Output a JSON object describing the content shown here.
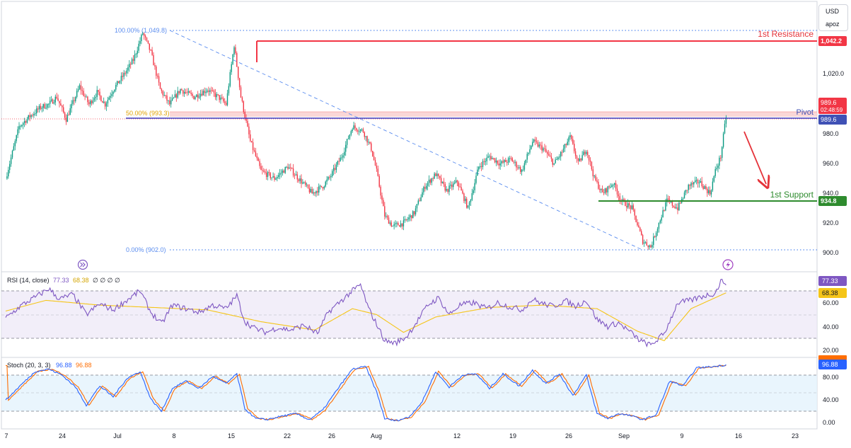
{
  "header": {
    "currency": "USD",
    "quote_mode": "apoz"
  },
  "colors": {
    "up": "#089981",
    "down": "#f23645",
    "resistance": "#f23645",
    "support": "#2e8b2e",
    "pivot": "#3f3fbf",
    "fib_line": "#5b8def",
    "rsi_line": "#7e57c2",
    "rsi_ma": "#f5c518",
    "stoch_k": "#2962ff",
    "stoch_d": "#ff6d00",
    "arrow": "#e5333a"
  },
  "icons": {
    "top_left": "double-chevron-right-icon",
    "top_right": "lightning-icon"
  },
  "main_chart": {
    "price_ticks": [
      "1,020.0",
      "980.0",
      "960.0",
      "940.0",
      "920.0",
      "900.0"
    ],
    "current_price": "989.6",
    "countdown": "02:48:59",
    "fib": {
      "f100": "100.00% (1,049.8)",
      "f50": "50.00% (993.3)",
      "f0": "0.00% (902.0)"
    },
    "levels": {
      "resistance": {
        "label": "1st Resistance",
        "value": "1,042.2",
        "price": 1042.2
      },
      "pivot": {
        "label": "Pivot",
        "value": "989.6",
        "price": 989.6
      },
      "support": {
        "label": "1st Support",
        "value": "934.8",
        "price": 934.8
      }
    }
  },
  "rsi": {
    "label": "RSI (14, close)",
    "value": "77.33",
    "ma_value": "68.38",
    "extra": "∅ ∅ ∅ ∅",
    "ticks": [
      "60.00",
      "40.00",
      "20.00"
    ],
    "bands": [
      70,
      50,
      30
    ]
  },
  "stoch": {
    "label": "Stoch (20, 3, 3)",
    "k_value": "96.88",
    "d_value": "96.88",
    "ticks": [
      "80.00",
      "40.00",
      "0.00"
    ],
    "bands": [
      80,
      50,
      20
    ]
  },
  "time_axis": [
    "7",
    "24",
    "Jul",
    "8",
    "15",
    "22",
    "26",
    "Aug",
    "12",
    "19",
    "26",
    "Sep",
    "9",
    "16",
    "23"
  ],
  "chart_data": {
    "type": "candlestick",
    "ylim": [
      893,
      1060
    ],
    "price_anchors": [
      [
        0,
        950
      ],
      [
        10,
        985
      ],
      [
        18,
        992
      ],
      [
        26,
        998
      ],
      [
        32,
        1000
      ],
      [
        38,
        1005
      ],
      [
        45,
        990
      ],
      [
        55,
        1012
      ],
      [
        62,
        1000
      ],
      [
        68,
        1008
      ],
      [
        74,
        1000
      ],
      [
        80,
        1010
      ],
      [
        88,
        1020
      ],
      [
        95,
        1030
      ],
      [
        102,
        1048
      ],
      [
        108,
        1035
      ],
      [
        115,
        1010
      ],
      [
        122,
        1000
      ],
      [
        130,
        1010
      ],
      [
        140,
        1005
      ],
      [
        150,
        1010
      ],
      [
        158,
        1005
      ],
      [
        164,
        1000
      ],
      [
        170,
        1040
      ],
      [
        175,
        1005
      ],
      [
        182,
        975
      ],
      [
        190,
        955
      ],
      [
        200,
        950
      ],
      [
        210,
        958
      ],
      [
        218,
        950
      ],
      [
        228,
        940
      ],
      [
        236,
        945
      ],
      [
        242,
        952
      ],
      [
        250,
        965
      ],
      [
        258,
        985
      ],
      [
        266,
        982
      ],
      [
        272,
        970
      ],
      [
        276,
        955
      ],
      [
        282,
        925
      ],
      [
        288,
        918
      ],
      [
        296,
        920
      ],
      [
        304,
        927
      ],
      [
        312,
        945
      ],
      [
        320,
        953
      ],
      [
        328,
        942
      ],
      [
        336,
        948
      ],
      [
        344,
        930
      ],
      [
        352,
        958
      ],
      [
        360,
        965
      ],
      [
        368,
        960
      ],
      [
        376,
        963
      ],
      [
        384,
        955
      ],
      [
        392,
        975
      ],
      [
        400,
        970
      ],
      [
        408,
        960
      ],
      [
        414,
        968
      ],
      [
        420,
        978
      ],
      [
        426,
        960
      ],
      [
        432,
        970
      ],
      [
        438,
        950
      ],
      [
        444,
        940
      ],
      [
        452,
        947
      ],
      [
        458,
        935
      ],
      [
        466,
        930
      ],
      [
        474,
        908
      ],
      [
        480,
        904
      ],
      [
        486,
        920
      ],
      [
        492,
        935
      ],
      [
        500,
        930
      ],
      [
        508,
        945
      ],
      [
        516,
        948
      ],
      [
        524,
        940
      ],
      [
        528,
        955
      ],
      [
        532,
        965
      ],
      [
        536,
        992
      ]
    ],
    "rsi_anchors": [
      [
        0,
        47
      ],
      [
        12,
        58
      ],
      [
        24,
        66
      ],
      [
        32,
        72
      ],
      [
        40,
        63
      ],
      [
        50,
        67
      ],
      [
        60,
        50
      ],
      [
        70,
        59
      ],
      [
        80,
        54
      ],
      [
        90,
        62
      ],
      [
        100,
        70
      ],
      [
        108,
        52
      ],
      [
        116,
        42
      ],
      [
        124,
        58
      ],
      [
        134,
        55
      ],
      [
        144,
        52
      ],
      [
        154,
        58
      ],
      [
        164,
        55
      ],
      [
        172,
        66
      ],
      [
        178,
        44
      ],
      [
        186,
        38
      ],
      [
        194,
        35
      ],
      [
        202,
        39
      ],
      [
        212,
        37
      ],
      [
        222,
        41
      ],
      [
        232,
        34
      ],
      [
        240,
        52
      ],
      [
        248,
        60
      ],
      [
        258,
        70
      ],
      [
        264,
        75
      ],
      [
        270,
        55
      ],
      [
        276,
        42
      ],
      [
        282,
        28
      ],
      [
        290,
        26
      ],
      [
        298,
        31
      ],
      [
        306,
        44
      ],
      [
        314,
        58
      ],
      [
        322,
        64
      ],
      [
        330,
        50
      ],
      [
        338,
        58
      ],
      [
        348,
        60
      ],
      [
        358,
        55
      ],
      [
        366,
        60
      ],
      [
        374,
        57
      ],
      [
        384,
        54
      ],
      [
        392,
        63
      ],
      [
        400,
        59
      ],
      [
        408,
        57
      ],
      [
        416,
        62
      ],
      [
        424,
        57
      ],
      [
        432,
        62
      ],
      [
        440,
        46
      ],
      [
        448,
        40
      ],
      [
        456,
        43
      ],
      [
        464,
        36
      ],
      [
        472,
        28
      ],
      [
        480,
        24
      ],
      [
        490,
        34
      ],
      [
        500,
        60
      ],
      [
        510,
        62
      ],
      [
        520,
        66
      ],
      [
        528,
        68
      ],
      [
        532,
        78
      ],
      [
        536,
        77.33
      ]
    ],
    "rsi_ma_anchors": [
      [
        0,
        53
      ],
      [
        30,
        62
      ],
      [
        70,
        58
      ],
      [
        110,
        56
      ],
      [
        150,
        54
      ],
      [
        190,
        44
      ],
      [
        230,
        37
      ],
      [
        258,
        55
      ],
      [
        276,
        50
      ],
      [
        296,
        35
      ],
      [
        320,
        48
      ],
      [
        360,
        56
      ],
      [
        400,
        58
      ],
      [
        440,
        55
      ],
      [
        470,
        36
      ],
      [
        490,
        28
      ],
      [
        510,
        55
      ],
      [
        536,
        68.38
      ]
    ],
    "stoch_anchors": [
      [
        0,
        38
      ],
      [
        12,
        65
      ],
      [
        22,
        86
      ],
      [
        32,
        90
      ],
      [
        42,
        80
      ],
      [
        52,
        60
      ],
      [
        60,
        30
      ],
      [
        70,
        62
      ],
      [
        80,
        44
      ],
      [
        90,
        74
      ],
      [
        100,
        86
      ],
      [
        108,
        40
      ],
      [
        116,
        20
      ],
      [
        124,
        58
      ],
      [
        134,
        70
      ],
      [
        144,
        58
      ],
      [
        154,
        78
      ],
      [
        164,
        66
      ],
      [
        172,
        82
      ],
      [
        178,
        24
      ],
      [
        186,
        8
      ],
      [
        194,
        6
      ],
      [
        206,
        12
      ],
      [
        216,
        16
      ],
      [
        226,
        6
      ],
      [
        236,
        22
      ],
      [
        248,
        60
      ],
      [
        258,
        90
      ],
      [
        268,
        94
      ],
      [
        276,
        52
      ],
      [
        282,
        8
      ],
      [
        290,
        4
      ],
      [
        300,
        10
      ],
      [
        310,
        36
      ],
      [
        320,
        86
      ],
      [
        330,
        60
      ],
      [
        340,
        80
      ],
      [
        350,
        82
      ],
      [
        360,
        58
      ],
      [
        370,
        82
      ],
      [
        382,
        62
      ],
      [
        392,
        88
      ],
      [
        402,
        66
      ],
      [
        412,
        82
      ],
      [
        422,
        46
      ],
      [
        432,
        80
      ],
      [
        440,
        16
      ],
      [
        448,
        8
      ],
      [
        456,
        16
      ],
      [
        466,
        12
      ],
      [
        474,
        6
      ],
      [
        484,
        14
      ],
      [
        494,
        70
      ],
      [
        504,
        62
      ],
      [
        514,
        92
      ],
      [
        526,
        94
      ],
      [
        536,
        96.88
      ]
    ]
  }
}
